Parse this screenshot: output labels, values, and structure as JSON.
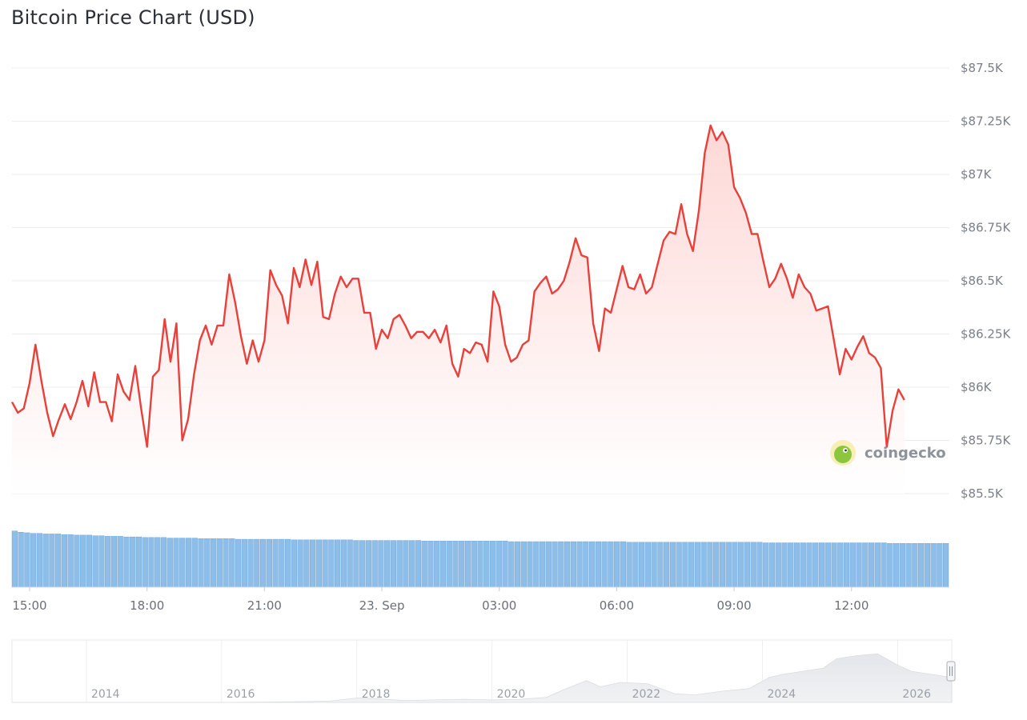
{
  "title": "Bitcoin Price Chart (USD)",
  "watermark": "coingecko",
  "colors": {
    "price_line": "#e8403a",
    "price_fill_top": "#fdd6d4",
    "volume_bar": "#8ebde8",
    "volume_stroke": "#5d9fdc",
    "grid": "#ececec",
    "navigator_area": "#e8eaed"
  },
  "chart_data": [
    {
      "type": "line",
      "title": "Bitcoin Price Chart (USD)",
      "x_tick_labels": [
        "15:00",
        "18:00",
        "21:00",
        "23. Sep",
        "03:00",
        "06:00",
        "09:00",
        "12:00"
      ],
      "y_tick_labels": [
        "$87.5K",
        "$87.25K",
        "$87K",
        "$86.75K",
        "$86.5K",
        "$86.25K",
        "$86K",
        "$85.75K",
        "$85.5K"
      ],
      "y_ticks": [
        87500,
        87250,
        87000,
        86750,
        86500,
        86250,
        86000,
        85750,
        85500
      ],
      "ylim": [
        85500,
        87500
      ],
      "x_hours": [
        14.55,
        14.7,
        14.85,
        15.0,
        15.15,
        15.3,
        15.45,
        15.6,
        15.75,
        15.9,
        16.05,
        16.2,
        16.35,
        16.5,
        16.65,
        16.8,
        16.95,
        17.1,
        17.25,
        17.4,
        17.55,
        17.7,
        17.85,
        18.0,
        18.15,
        18.3,
        18.45,
        18.6,
        18.75,
        18.9,
        19.05,
        19.2,
        19.35,
        19.5,
        19.65,
        19.8,
        19.95,
        20.1,
        20.25,
        20.4,
        20.55,
        20.7,
        20.85,
        21.0,
        21.15,
        21.3,
        21.45,
        21.6,
        21.75,
        21.9,
        22.05,
        22.2,
        22.35,
        22.5,
        22.65,
        22.8,
        22.95,
        23.1,
        23.25,
        23.4,
        23.55,
        23.7,
        23.85,
        24.0,
        24.15,
        24.3,
        24.45,
        24.6,
        24.75,
        24.9,
        25.05,
        25.2,
        25.35,
        25.5,
        25.65,
        25.8,
        25.95,
        26.1,
        26.25,
        26.4,
        26.55,
        26.7,
        26.85,
        27.0,
        27.15,
        27.3,
        27.45,
        27.6,
        27.75,
        27.9,
        28.05,
        28.2,
        28.35,
        28.5,
        28.65,
        28.8,
        28.95,
        29.1,
        29.25,
        29.4,
        29.55,
        29.7,
        29.85,
        30.0,
        30.15,
        30.3,
        30.45,
        30.6,
        30.75,
        30.9,
        31.05,
        31.2,
        31.35,
        31.5,
        31.65,
        31.8,
        31.95,
        32.1,
        32.25,
        32.4,
        32.55,
        32.7,
        32.85,
        33.0,
        33.15,
        33.3,
        33.45,
        33.6,
        33.75,
        33.9,
        34.05,
        34.2,
        34.35,
        34.5,
        34.65,
        34.8,
        34.95,
        35.1,
        35.25,
        35.4,
        35.55,
        35.7,
        35.85,
        36.0,
        36.15,
        36.3,
        36.45,
        36.6,
        36.75,
        36.9,
        37.05,
        37.2,
        37.35,
        37.5,
        37.65,
        37.8,
        37.95,
        38.1,
        38.25,
        38.5
      ],
      "series": [
        {
          "values": [
            85930,
            85880,
            85900,
            86020,
            86200,
            86030,
            85880,
            85770,
            85850,
            85920,
            85850,
            85930,
            86030,
            85910,
            86070,
            85930,
            85930,
            85840,
            86060,
            85980,
            85940,
            86100,
            85900,
            85720,
            86050,
            86080,
            86320,
            86120,
            86300,
            85750,
            85850,
            86060,
            86220,
            86290,
            86200,
            86290,
            86290,
            86530,
            86400,
            86240,
            86110,
            86220,
            86120,
            86220,
            86550,
            86480,
            86430,
            86300,
            86560,
            86470,
            86600,
            86480,
            86590,
            86330,
            86320,
            86440,
            86520,
            86470,
            86510,
            86510,
            86350,
            86350,
            86180,
            86270,
            86230,
            86320,
            86340,
            86290,
            86230,
            86260,
            86260,
            86230,
            86270,
            86210,
            86290,
            86110,
            86050,
            86180,
            86160,
            86210,
            86200,
            86120,
            86450,
            86380,
            86200,
            86120,
            86140,
            86200,
            86220,
            86450,
            86490,
            86520,
            86440,
            86460,
            86500,
            86590,
            86700,
            86620,
            86610,
            86300,
            86170,
            86370,
            86350,
            86460,
            86570,
            86470,
            86460,
            86530,
            86440,
            86470,
            86580,
            86690,
            86730,
            86720,
            86860,
            86720,
            86640,
            86830,
            87100,
            87230,
            87160,
            87200,
            87140,
            86940,
            86890,
            86820,
            86720,
            86720,
            86590,
            86470,
            86510,
            86580,
            86510,
            86420,
            86530,
            86470,
            86440,
            86360,
            86370,
            86380,
            86220,
            86060,
            86180,
            86130,
            86190,
            86240,
            86160,
            86140,
            86090,
            85720,
            85890,
            85990,
            85940
          ]
        }
      ]
    },
    {
      "type": "bar",
      "title": "",
      "series": [
        {
          "values_relative": [
            0.95,
            0.93,
            0.92,
            0.91,
            0.91,
            0.9,
            0.9,
            0.9,
            0.89,
            0.89,
            0.88,
            0.88,
            0.88,
            0.87,
            0.87,
            0.86,
            0.86,
            0.86,
            0.85,
            0.85,
            0.85,
            0.84,
            0.84,
            0.84,
            0.84,
            0.83,
            0.83,
            0.83,
            0.83,
            0.83,
            0.82,
            0.82,
            0.82,
            0.82,
            0.82,
            0.82,
            0.81,
            0.81,
            0.81,
            0.81,
            0.81,
            0.81,
            0.81,
            0.81,
            0.81,
            0.8,
            0.8,
            0.8,
            0.8,
            0.8,
            0.8,
            0.8,
            0.8,
            0.8,
            0.8,
            0.79,
            0.79,
            0.79,
            0.79,
            0.79,
            0.79,
            0.79,
            0.79,
            0.79,
            0.79,
            0.79,
            0.78,
            0.78,
            0.78,
            0.78,
            0.78,
            0.78,
            0.78,
            0.78,
            0.78,
            0.78,
            0.78,
            0.78,
            0.78,
            0.78,
            0.77,
            0.77,
            0.77,
            0.77,
            0.77,
            0.77,
            0.77,
            0.77,
            0.77,
            0.77,
            0.77,
            0.77,
            0.77,
            0.77,
            0.77,
            0.77,
            0.77,
            0.77,
            0.77,
            0.76,
            0.76,
            0.76,
            0.76,
            0.76,
            0.76,
            0.76,
            0.76,
            0.76,
            0.76,
            0.76,
            0.76,
            0.76,
            0.76,
            0.76,
            0.76,
            0.76,
            0.76,
            0.76,
            0.76,
            0.76,
            0.76,
            0.75,
            0.75,
            0.75,
            0.75,
            0.75,
            0.75,
            0.75,
            0.75,
            0.75,
            0.75,
            0.75,
            0.75,
            0.75,
            0.75,
            0.75,
            0.75,
            0.75,
            0.75,
            0.75,
            0.75,
            0.74,
            0.74,
            0.74,
            0.74,
            0.74,
            0.74,
            0.74,
            0.74,
            0.74,
            0.74
          ]
        }
      ]
    },
    {
      "type": "area",
      "title": "",
      "x_tick_labels": [
        "2014",
        "2016",
        "2018",
        "2020",
        "2022",
        "2024",
        "2026"
      ],
      "x": [
        2012.8,
        2014,
        2015,
        2016,
        2017,
        2017.5,
        2017.9,
        2018.2,
        2018.6,
        2019.0,
        2019.5,
        2019.9,
        2020.3,
        2020.7,
        2021.0,
        2021.3,
        2021.5,
        2021.8,
        2022.2,
        2022.6,
        2022.9,
        2023.3,
        2023.7,
        2024.0,
        2024.2,
        2024.5,
        2024.8,
        2025.0,
        2025.3,
        2025.6,
        2025.9,
        2026.1,
        2026.4,
        2026.7
      ],
      "series": [
        {
          "values_relative": [
            0.0,
            0.0,
            0.0,
            0.0,
            0.01,
            0.02,
            0.07,
            0.06,
            0.03,
            0.04,
            0.05,
            0.04,
            0.05,
            0.08,
            0.22,
            0.35,
            0.25,
            0.32,
            0.3,
            0.14,
            0.12,
            0.18,
            0.22,
            0.4,
            0.45,
            0.5,
            0.55,
            0.7,
            0.75,
            0.78,
            0.6,
            0.5,
            0.45,
            0.4
          ]
        }
      ]
    }
  ]
}
